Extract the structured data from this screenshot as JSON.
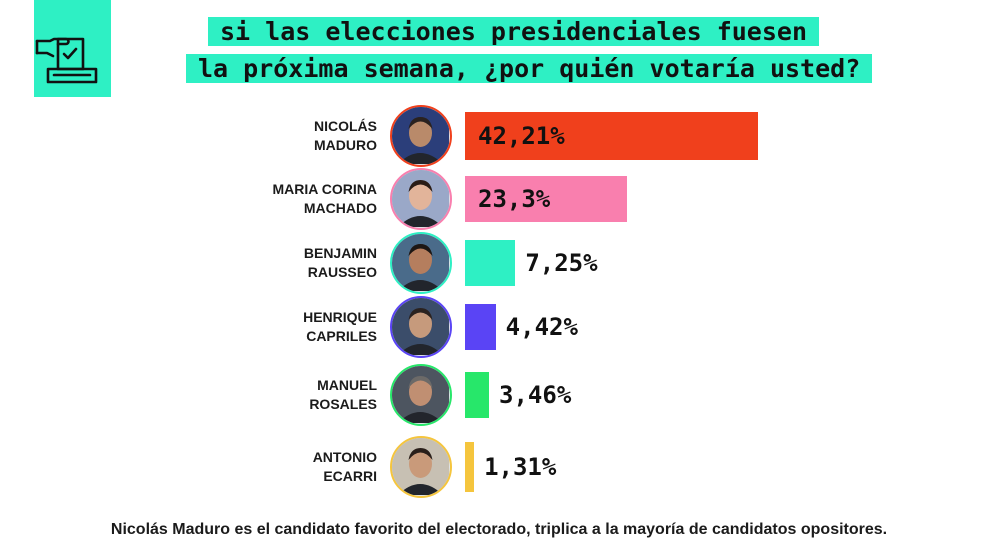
{
  "icon": "ballot-box-icon",
  "title_lines": [
    "si las elecciones presidenciales fuesen",
    "la próxima semana, ¿por quién votaría usted?"
  ],
  "colors": {
    "accent": "#2ef0c4",
    "maduro": "#f0401c",
    "machado": "#f97fae",
    "rausseo": "#2ef0c4",
    "capriles": "#5a44f5",
    "rosales": "#27e76a",
    "ecarri": "#f5c53d"
  },
  "chart_data": {
    "type": "bar",
    "orientation": "horizontal",
    "categories": [
      [
        "NICOLÁS",
        "MADURO"
      ],
      [
        "MARIA CORINA",
        "MACHADO"
      ],
      [
        "BENJAMIN",
        "RAUSSEO"
      ],
      [
        "HENRIQUE",
        "CAPRILES"
      ],
      [
        "MANUEL",
        "ROSALES"
      ],
      [
        "ANTONIO",
        "ECARRI"
      ]
    ],
    "values": [
      42.21,
      23.3,
      7.25,
      4.42,
      3.46,
      1.31
    ],
    "value_labels": [
      "42,21%",
      "23,3%",
      "7,25%",
      "4,42%",
      "3,46%",
      "1,31%"
    ],
    "colors": [
      "#f0401c",
      "#f97fae",
      "#2ef0c4",
      "#5a44f5",
      "#27e76a",
      "#f5c53d"
    ],
    "title": "si las elecciones presidenciales fuesen la próxima semana, ¿por quién votaría usted?",
    "xlabel": "",
    "ylabel": "",
    "grid": false,
    "legend": "none"
  },
  "footer": "Nicolás Maduro es el candidato favorito del electorado, triplica a la mayoría de candidatos opositores."
}
